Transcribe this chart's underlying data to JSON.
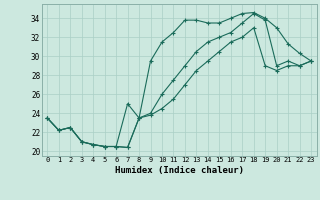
{
  "xlabel": "Humidex (Indice chaleur)",
  "background_color": "#cce8df",
  "grid_color": "#aacfc6",
  "line_color": "#1a6b5a",
  "xlim": [
    -0.5,
    23.5
  ],
  "ylim": [
    19.5,
    35.5
  ],
  "xticks": [
    0,
    1,
    2,
    3,
    4,
    5,
    6,
    7,
    8,
    9,
    10,
    11,
    12,
    13,
    14,
    15,
    16,
    17,
    18,
    19,
    20,
    21,
    22,
    23
  ],
  "yticks": [
    20,
    22,
    24,
    26,
    28,
    30,
    32,
    34
  ],
  "line1_x": [
    0,
    1,
    2,
    3,
    4,
    5,
    6,
    7,
    8,
    9,
    10,
    11,
    12,
    13,
    14,
    15,
    16,
    17,
    18,
    19,
    20,
    21,
    22,
    23
  ],
  "line1_y": [
    23.5,
    22.2,
    22.5,
    21.0,
    20.7,
    20.5,
    20.5,
    20.4,
    23.5,
    29.5,
    31.5,
    32.5,
    33.8,
    33.8,
    33.5,
    33.5,
    34.0,
    34.5,
    34.6,
    34.0,
    33.0,
    31.3,
    30.3,
    29.5
  ],
  "line2_x": [
    0,
    1,
    2,
    3,
    4,
    5,
    6,
    7,
    8,
    9,
    10,
    11,
    12,
    13,
    14,
    15,
    16,
    17,
    18,
    19,
    20,
    21,
    22,
    23
  ],
  "line2_y": [
    23.5,
    22.2,
    22.5,
    21.0,
    20.7,
    20.5,
    20.5,
    25.0,
    23.5,
    24.0,
    26.0,
    27.5,
    29.0,
    30.5,
    31.5,
    32.0,
    32.5,
    33.5,
    34.5,
    33.8,
    29.0,
    29.5,
    29.0,
    29.5
  ],
  "line3_x": [
    0,
    1,
    2,
    3,
    4,
    5,
    6,
    7,
    8,
    9,
    10,
    11,
    12,
    13,
    14,
    15,
    16,
    17,
    18,
    19,
    20,
    21,
    22,
    23
  ],
  "line3_y": [
    23.5,
    22.2,
    22.5,
    21.0,
    20.7,
    20.5,
    20.5,
    20.4,
    23.5,
    23.8,
    24.5,
    25.5,
    27.0,
    28.5,
    29.5,
    30.5,
    31.5,
    32.0,
    33.0,
    29.0,
    28.5,
    29.0,
    29.0,
    29.5
  ]
}
